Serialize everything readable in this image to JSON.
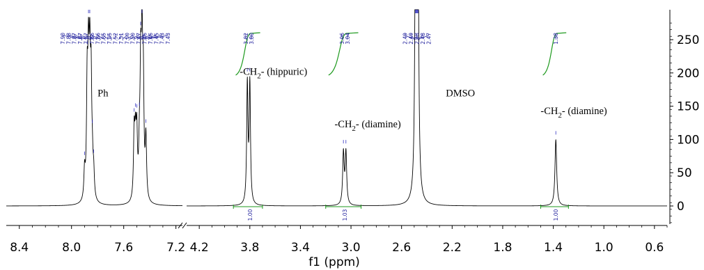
{
  "chart_data": {
    "type": "line",
    "title": "",
    "xlabel": "f1 (ppm)",
    "ylabel": "",
    "x_axis": {
      "segments": [
        {
          "from": 8.5,
          "to": 7.15
        },
        {
          "from": 4.3,
          "to": 0.5
        }
      ],
      "ticks": [
        {
          "value": 8.4,
          "label": "8.4",
          "segment": 0
        },
        {
          "value": 8.0,
          "label": "8.0",
          "segment": 0
        },
        {
          "value": 7.6,
          "label": "7.6",
          "segment": 0
        },
        {
          "value": 7.2,
          "label": "7.2",
          "segment": 0
        },
        {
          "value": 4.2,
          "label": "4.2",
          "segment": 1
        },
        {
          "value": 3.8,
          "label": "3.8",
          "segment": 1
        },
        {
          "value": 3.4,
          "label": "3.4",
          "segment": 1
        },
        {
          "value": 3.0,
          "label": "3.0",
          "segment": 1
        },
        {
          "value": 2.6,
          "label": "2.6",
          "segment": 1
        },
        {
          "value": 2.2,
          "label": "2.2",
          "segment": 1
        },
        {
          "value": 1.8,
          "label": "1.8",
          "segment": 1
        },
        {
          "value": 1.4,
          "label": "1.4",
          "segment": 1
        },
        {
          "value": 1.0,
          "label": "1.0",
          "segment": 1
        },
        {
          "value": 0.6,
          "label": "0.6",
          "segment": 1
        }
      ],
      "reversed": true,
      "broken": true
    },
    "y_axis": {
      "position": "right",
      "ylim": [
        -30,
        300
      ],
      "ticks": [
        {
          "value": 0,
          "label": "0"
        },
        {
          "value": 50,
          "label": "50"
        },
        {
          "value": 100,
          "label": "100"
        },
        {
          "value": 150,
          "label": "150"
        },
        {
          "value": 200,
          "label": "200"
        },
        {
          "value": 250,
          "label": "250"
        }
      ]
    },
    "grid": false,
    "peaks": [
      {
        "ppm": 7.9,
        "height": 42,
        "width": 0.006
      },
      {
        "ppm": 7.88,
        "height": 163,
        "width": 0.006
      },
      {
        "ppm": 7.87,
        "height": 178,
        "width": 0.006
      },
      {
        "ppm": 7.86,
        "height": 176,
        "width": 0.006
      },
      {
        "ppm": 7.85,
        "height": 160,
        "width": 0.006
      },
      {
        "ppm": 7.84,
        "height": 40,
        "width": 0.006
      },
      {
        "ppm": 7.83,
        "height": 35,
        "width": 0.006
      },
      {
        "ppm": 7.52,
        "height": 98,
        "width": 0.006
      },
      {
        "ppm": 7.51,
        "height": 80,
        "width": 0.006
      },
      {
        "ppm": 7.5,
        "height": 92,
        "width": 0.006
      },
      {
        "ppm": 7.48,
        "height": 60,
        "width": 0.006
      },
      {
        "ppm": 7.47,
        "height": 170,
        "width": 0.006
      },
      {
        "ppm": 7.46,
        "height": 213,
        "width": 0.006
      },
      {
        "ppm": 7.45,
        "height": 160,
        "width": 0.006
      },
      {
        "ppm": 7.43,
        "height": 90,
        "width": 0.006
      },
      {
        "ppm": 3.82,
        "height": 180,
        "width": 0.006
      },
      {
        "ppm": 3.8,
        "height": 180,
        "width": 0.006
      },
      {
        "ppm": 3.06,
        "height": 78,
        "width": 0.007
      },
      {
        "ppm": 3.04,
        "height": 78,
        "width": 0.007
      },
      {
        "ppm": 2.49,
        "height": 270,
        "width": 0.006
      },
      {
        "ppm": 2.485,
        "height": 270,
        "width": 0.006
      },
      {
        "ppm": 2.48,
        "height": 270,
        "width": 0.006
      },
      {
        "ppm": 2.475,
        "height": 270,
        "width": 0.006
      },
      {
        "ppm": 2.47,
        "height": 270,
        "width": 0.006
      },
      {
        "ppm": 1.38,
        "height": 100,
        "width": 0.008
      }
    ],
    "peak_labels": [
      {
        "group": [
          "7.90",
          "7.88",
          "7.87",
          "7.87",
          "7.87",
          "7.86",
          "7.86",
          "7.85",
          "7.85",
          "7.52",
          "7.51",
          "7.50",
          "7.50",
          "7.47",
          "7.46",
          "7.46",
          "7.45",
          "7.43",
          "7.43"
        ],
        "span_ppm": [
          7.92,
          7.41
        ],
        "segment": 0
      },
      {
        "group": [
          "3.82",
          "3.80"
        ],
        "span_ppm": [
          3.83,
          3.79
        ],
        "segment": 1
      },
      {
        "group": [
          "3.06",
          "3.04"
        ],
        "span_ppm": [
          3.07,
          3.03
        ],
        "segment": 1
      },
      {
        "group": [
          "2.49",
          "2.49",
          "2.48",
          "2.48",
          "2.47"
        ],
        "span_ppm": [
          2.5,
          2.46
        ],
        "segment": 1
      },
      {
        "group": [
          "1.38"
        ],
        "span_ppm": [
          1.38,
          1.38
        ],
        "segment": 1
      }
    ],
    "integrals": [
      {
        "from": 3.93,
        "to": 3.7,
        "value": "1.00",
        "label_ppm": 3.8
      },
      {
        "from": 3.2,
        "to": 2.92,
        "value": "1.03",
        "label_ppm": 3.05
      },
      {
        "from": 1.5,
        "to": 1.28,
        "value": "1.00",
        "label_ppm": 1.38
      }
    ],
    "annotations": [
      {
        "ppm": 7.8,
        "y": 165,
        "parts": [
          "Ph"
        ]
      },
      {
        "ppm": 3.88,
        "y": 197,
        "parts": [
          "-CH",
          "2",
          "- (hippuric)"
        ]
      },
      {
        "ppm": 3.13,
        "y": 118,
        "parts": [
          "-CH",
          "2",
          "- (diamine)"
        ]
      },
      {
        "ppm": 2.25,
        "y": 165,
        "parts": [
          "DMSO"
        ]
      },
      {
        "ppm": 1.5,
        "y": 138,
        "parts": [
          "-CH",
          "2",
          "- (diamine)"
        ]
      }
    ]
  }
}
